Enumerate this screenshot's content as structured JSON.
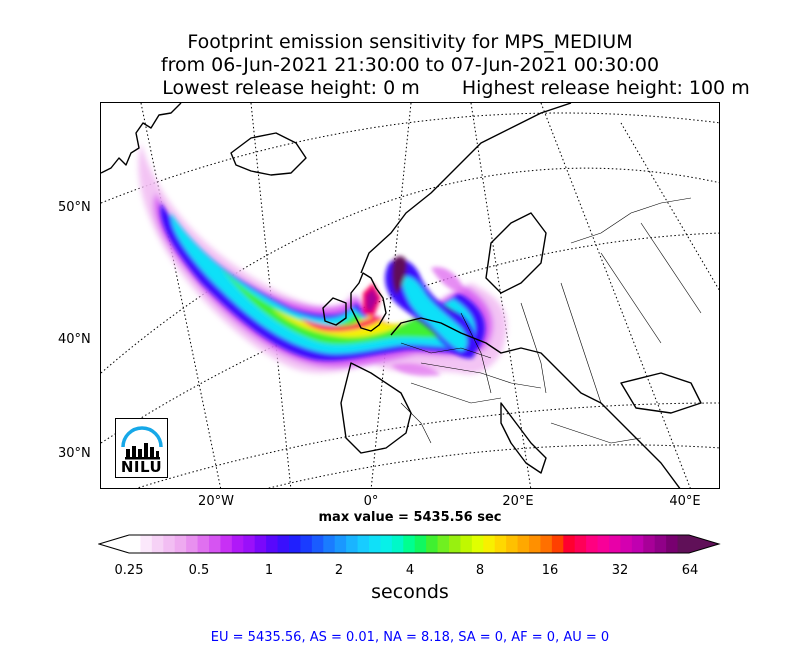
{
  "title": {
    "line1": "Footprint emission sensitivity for MPS_MEDIUM",
    "line2": "from 06-Jun-2021 21:30:00 to 07-Jun-2021 00:30:00",
    "line3_left": "Lowest release height: 0 m",
    "line3_right": "Highest release height: 100 m"
  },
  "map": {
    "lat_labels": [
      "50°N",
      "40°N",
      "30°N"
    ],
    "lon_labels": [
      "20°W",
      "0°",
      "20°E",
      "40°E"
    ],
    "logo_text": "NILU",
    "max_value_text": "max value = 5435.56 sec"
  },
  "colorbar": {
    "tick_labels": [
      "0.25",
      "0.5",
      "1",
      "2",
      "4",
      "8",
      "16",
      "32",
      "64"
    ],
    "label": "seconds",
    "colors": [
      "#ffffff",
      "#fbe8fb",
      "#f6d2f6",
      "#f2bef3",
      "#eeaaf0",
      "#e890ef",
      "#e070f0",
      "#d654f2",
      "#c830f5",
      "#b018f8",
      "#9a10fa",
      "#7a08fb",
      "#5808fc",
      "#3a10fd",
      "#2020fe",
      "#1a3cff",
      "#1a5cff",
      "#1a7cff",
      "#1a98ff",
      "#1ab4ff",
      "#18ccff",
      "#10e0f8",
      "#08f0e8",
      "#00f8c8",
      "#00ff90",
      "#10f860",
      "#40f030",
      "#70f020",
      "#98f010",
      "#c0f800",
      "#e0ff00",
      "#f8f000",
      "#ffd800",
      "#ffc000",
      "#ffa800",
      "#ff9000",
      "#ff7000",
      "#ff4000",
      "#ff0030",
      "#ff0058",
      "#ff0080",
      "#f80098",
      "#e800a8",
      "#d400b0",
      "#c000b0",
      "#a80098",
      "#900088",
      "#780070",
      "#601058"
    ]
  },
  "footer": "EU = 5435.56,  AS = 0.01,  NA = 8.18,  SA = 0,  AF = 0,  AU = 0"
}
